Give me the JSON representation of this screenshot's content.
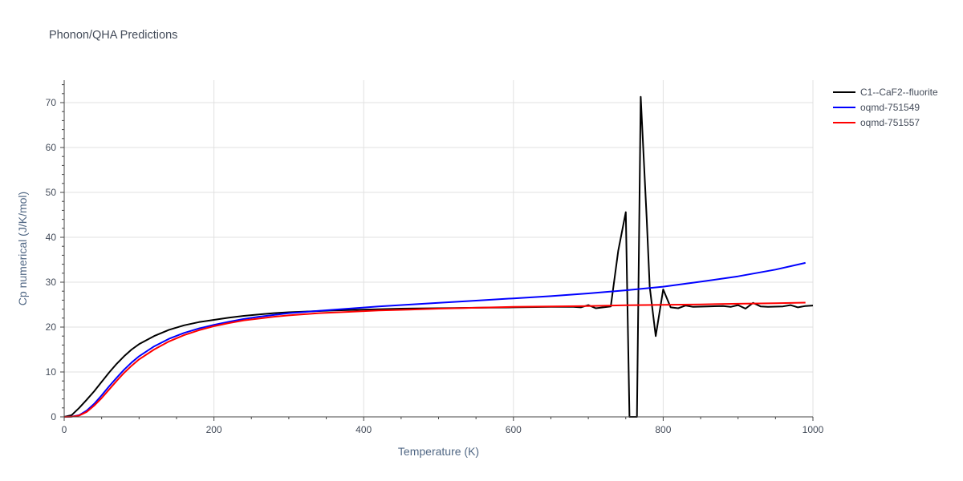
{
  "chart_data": {
    "type": "line",
    "title": "Phonon/QHA Predictions",
    "xlabel": "Temperature (K)",
    "ylabel": "Cp numerical (J/K/mol)",
    "xlim": [
      0,
      1000
    ],
    "ylim": [
      0,
      75
    ],
    "x_ticks": [
      0,
      200,
      400,
      600,
      800,
      1000
    ],
    "y_ticks": [
      0,
      10,
      20,
      30,
      40,
      50,
      60,
      70
    ],
    "grid": true,
    "legend_position": "top-right",
    "series": [
      {
        "name": "C1--CaF2--fluorite",
        "color": "#000000",
        "points": [
          [
            0,
            0
          ],
          [
            10,
            0.4
          ],
          [
            20,
            2.0
          ],
          [
            30,
            3.8
          ],
          [
            40,
            5.7
          ],
          [
            50,
            7.8
          ],
          [
            60,
            9.9
          ],
          [
            70,
            11.8
          ],
          [
            80,
            13.5
          ],
          [
            90,
            15.0
          ],
          [
            100,
            16.2
          ],
          [
            120,
            18.0
          ],
          [
            140,
            19.4
          ],
          [
            160,
            20.4
          ],
          [
            180,
            21.1
          ],
          [
            200,
            21.6
          ],
          [
            220,
            22.1
          ],
          [
            240,
            22.5
          ],
          [
            260,
            22.8
          ],
          [
            280,
            23.1
          ],
          [
            300,
            23.3
          ],
          [
            330,
            23.5
          ],
          [
            360,
            23.7
          ],
          [
            400,
            23.9
          ],
          [
            450,
            24.1
          ],
          [
            500,
            24.2
          ],
          [
            550,
            24.3
          ],
          [
            600,
            24.4
          ],
          [
            650,
            24.5
          ],
          [
            680,
            24.5
          ],
          [
            690,
            24.4
          ],
          [
            700,
            24.9
          ],
          [
            710,
            24.2
          ],
          [
            720,
            24.4
          ],
          [
            730,
            24.6
          ],
          [
            740,
            37.0
          ],
          [
            750,
            45.6
          ],
          [
            755,
            0.0
          ],
          [
            765,
            0.0
          ],
          [
            770,
            71.3
          ],
          [
            778,
            44.0
          ],
          [
            782,
            29.0
          ],
          [
            790,
            18.0
          ],
          [
            800,
            28.4
          ],
          [
            810,
            24.4
          ],
          [
            820,
            24.2
          ],
          [
            830,
            24.8
          ],
          [
            840,
            24.5
          ],
          [
            860,
            24.6
          ],
          [
            880,
            24.7
          ],
          [
            890,
            24.5
          ],
          [
            900,
            24.9
          ],
          [
            910,
            24.1
          ],
          [
            920,
            25.4
          ],
          [
            930,
            24.6
          ],
          [
            940,
            24.5
          ],
          [
            960,
            24.6
          ],
          [
            970,
            24.9
          ],
          [
            980,
            24.4
          ],
          [
            990,
            24.7
          ],
          [
            1000,
            24.8
          ]
        ]
      },
      {
        "name": "oqmd-751549",
        "color": "#0000ff",
        "points": [
          [
            0,
            0
          ],
          [
            10,
            0.05
          ],
          [
            20,
            0.4
          ],
          [
            30,
            1.4
          ],
          [
            40,
            2.9
          ],
          [
            50,
            4.8
          ],
          [
            60,
            6.8
          ],
          [
            70,
            8.7
          ],
          [
            80,
            10.5
          ],
          [
            90,
            12.1
          ],
          [
            100,
            13.5
          ],
          [
            120,
            15.7
          ],
          [
            140,
            17.4
          ],
          [
            160,
            18.7
          ],
          [
            180,
            19.7
          ],
          [
            200,
            20.5
          ],
          [
            220,
            21.2
          ],
          [
            240,
            21.8
          ],
          [
            260,
            22.3
          ],
          [
            280,
            22.7
          ],
          [
            300,
            23.1
          ],
          [
            340,
            23.6
          ],
          [
            380,
            24.1
          ],
          [
            420,
            24.6
          ],
          [
            460,
            25.0
          ],
          [
            500,
            25.4
          ],
          [
            550,
            25.9
          ],
          [
            600,
            26.4
          ],
          [
            650,
            26.9
          ],
          [
            700,
            27.5
          ],
          [
            750,
            28.2
          ],
          [
            800,
            29.0
          ],
          [
            850,
            30.1
          ],
          [
            900,
            31.3
          ],
          [
            950,
            32.8
          ],
          [
            990,
            34.3
          ]
        ]
      },
      {
        "name": "oqmd-751557",
        "color": "#ff0000",
        "points": [
          [
            0,
            0
          ],
          [
            10,
            0.03
          ],
          [
            20,
            0.3
          ],
          [
            30,
            1.1
          ],
          [
            40,
            2.5
          ],
          [
            50,
            4.2
          ],
          [
            60,
            6.1
          ],
          [
            70,
            8.0
          ],
          [
            80,
            9.8
          ],
          [
            90,
            11.4
          ],
          [
            100,
            12.8
          ],
          [
            120,
            15.0
          ],
          [
            140,
            16.8
          ],
          [
            160,
            18.2
          ],
          [
            180,
            19.3
          ],
          [
            200,
            20.2
          ],
          [
            220,
            20.9
          ],
          [
            240,
            21.5
          ],
          [
            260,
            21.9
          ],
          [
            280,
            22.3
          ],
          [
            300,
            22.6
          ],
          [
            340,
            23.1
          ],
          [
            380,
            23.4
          ],
          [
            420,
            23.7
          ],
          [
            460,
            23.9
          ],
          [
            500,
            24.1
          ],
          [
            550,
            24.3
          ],
          [
            600,
            24.5
          ],
          [
            650,
            24.6
          ],
          [
            700,
            24.7
          ],
          [
            750,
            24.85
          ],
          [
            800,
            24.95
          ],
          [
            850,
            25.05
          ],
          [
            900,
            25.2
          ],
          [
            950,
            25.3
          ],
          [
            990,
            25.45
          ]
        ]
      }
    ]
  }
}
